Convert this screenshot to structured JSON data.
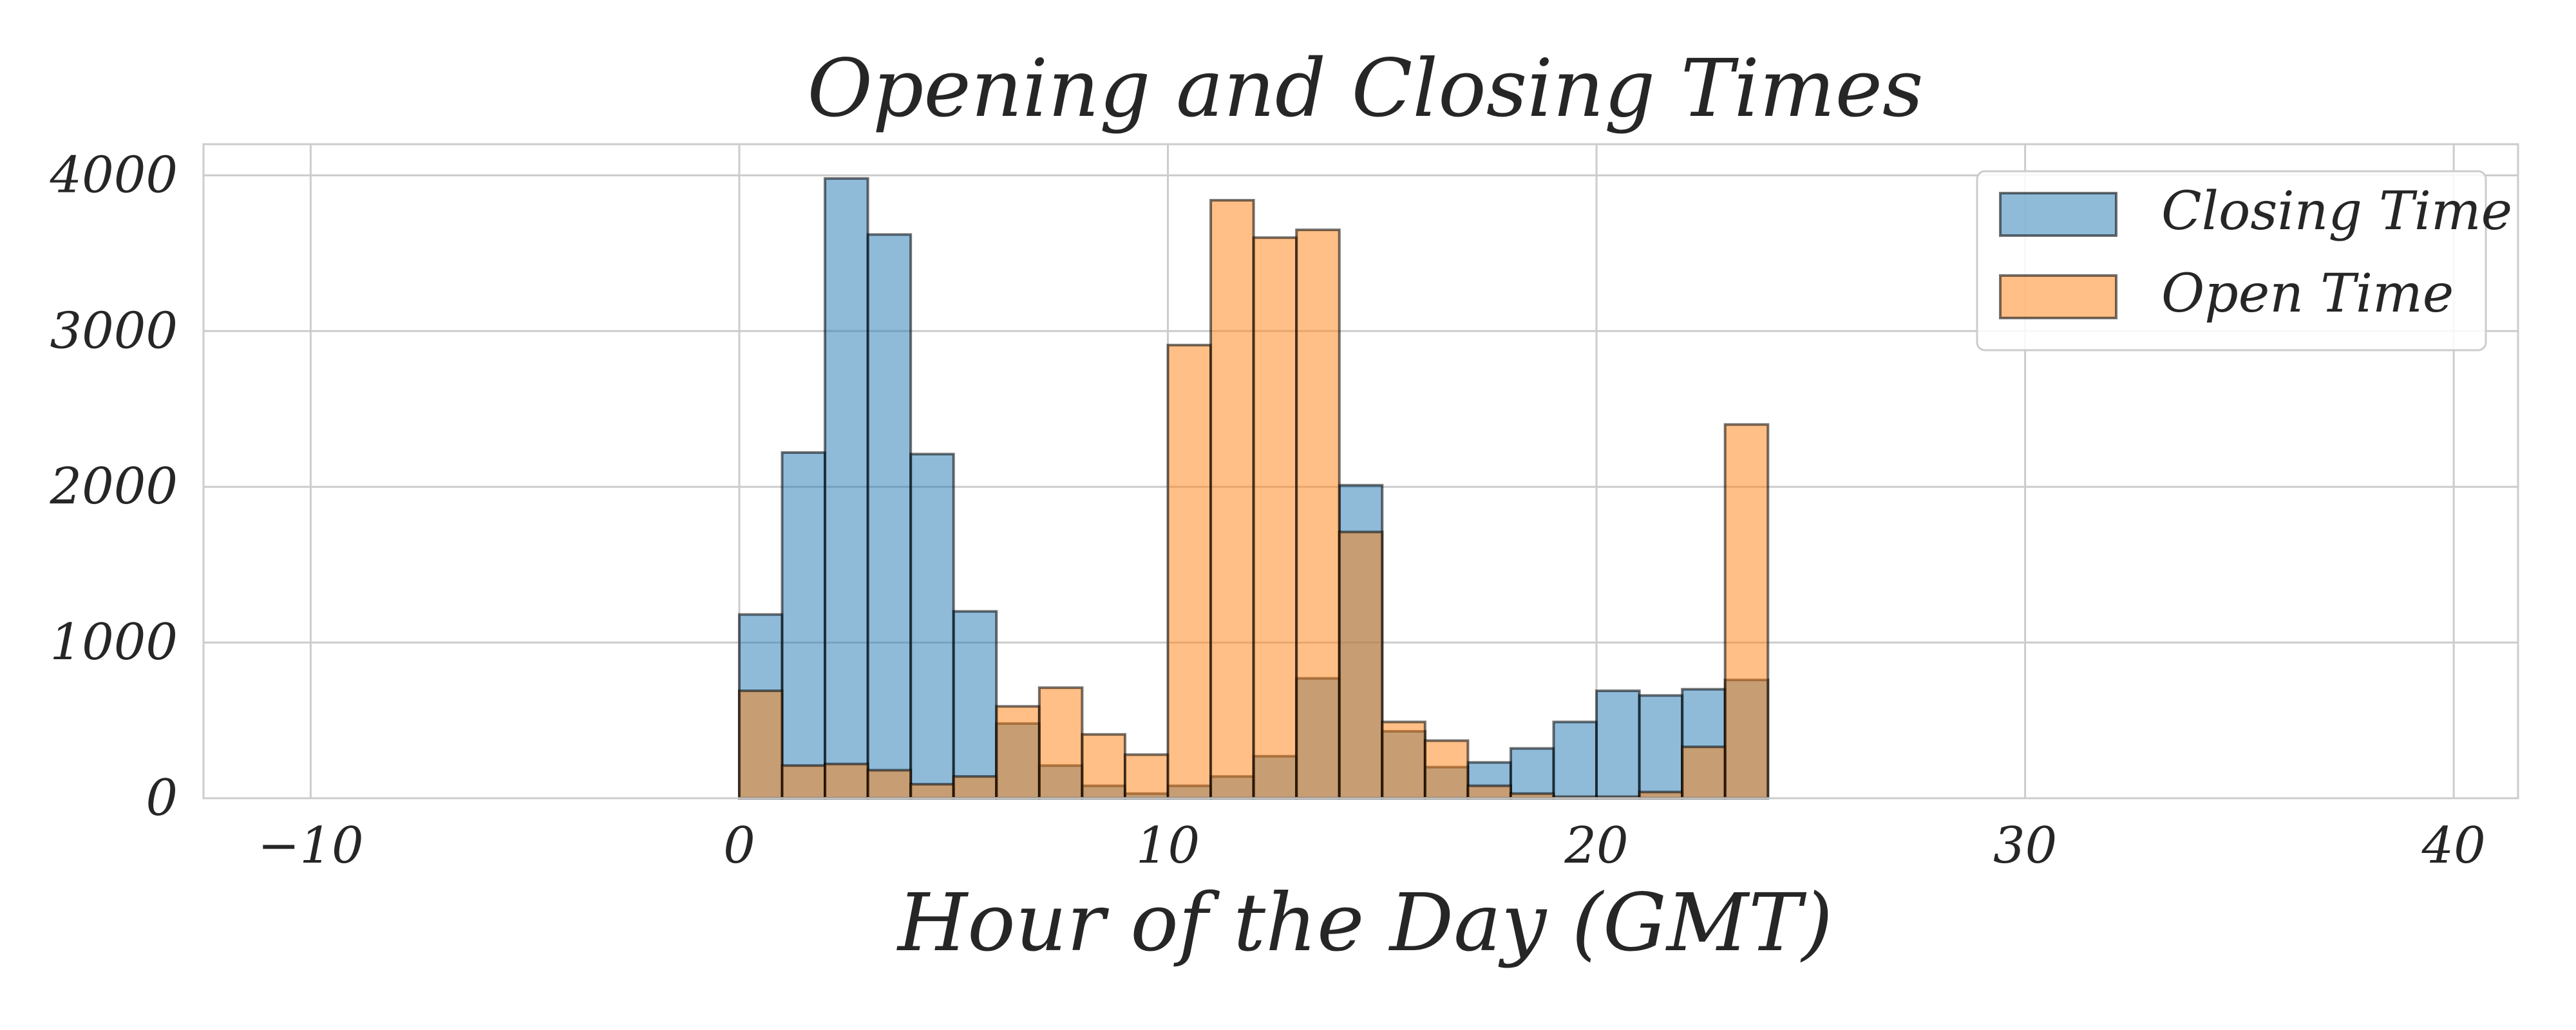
{
  "chart_data": {
    "type": "bar",
    "title": "Opening and Closing Times",
    "xlabel": "Hour of the Day (GMT)",
    "ylabel": "",
    "xlim": [
      -12.5,
      41.5
    ],
    "ylim": [
      0,
      4200
    ],
    "grid": true,
    "legend_position": "top-right",
    "x_ticks": [
      -10,
      0,
      10,
      20,
      30,
      40
    ],
    "x_tick_labels": [
      "−10",
      "0",
      "10",
      "20",
      "30",
      "40"
    ],
    "y_ticks": [
      0,
      1000,
      2000,
      3000,
      4000
    ],
    "y_tick_labels": [
      "0",
      "1000",
      "2000",
      "3000",
      "4000"
    ],
    "bin_edges": [
      -10,
      -9,
      -8,
      -7,
      -6,
      -5,
      -4,
      -3,
      -2,
      -1,
      0,
      1,
      2,
      3,
      4,
      5,
      6,
      7,
      8,
      9,
      10,
      11,
      12,
      13,
      14,
      15,
      16,
      17,
      18,
      19,
      20,
      21,
      22,
      23,
      24,
      25,
      26,
      27,
      28,
      29,
      30,
      31,
      32,
      33,
      34,
      35,
      36,
      37,
      38,
      39
    ],
    "series": [
      {
        "name": "Closing Time",
        "color": "#1f77b4",
        "values": [
          0,
          0,
          0,
          0,
          0,
          0,
          0,
          0,
          0,
          0,
          1180,
          2220,
          3980,
          3620,
          2210,
          1200,
          480,
          210,
          80,
          30,
          80,
          140,
          270,
          770,
          2010,
          430,
          200,
          230,
          320,
          490,
          690,
          660,
          700,
          760,
          0,
          0,
          0,
          0,
          0,
          0,
          0,
          0,
          0,
          0,
          0,
          0,
          0,
          0,
          0
        ]
      },
      {
        "name": "Open Time",
        "color": "#ff7f0e",
        "values": [
          0,
          0,
          0,
          0,
          0,
          0,
          0,
          0,
          0,
          0,
          690,
          210,
          220,
          180,
          90,
          140,
          590,
          710,
          410,
          280,
          2910,
          3840,
          3600,
          3650,
          1710,
          490,
          370,
          80,
          30,
          10,
          10,
          40,
          330,
          2400,
          0,
          0,
          0,
          0,
          0,
          0,
          0,
          0,
          0,
          0,
          0,
          0,
          0,
          0,
          0
        ]
      }
    ]
  }
}
